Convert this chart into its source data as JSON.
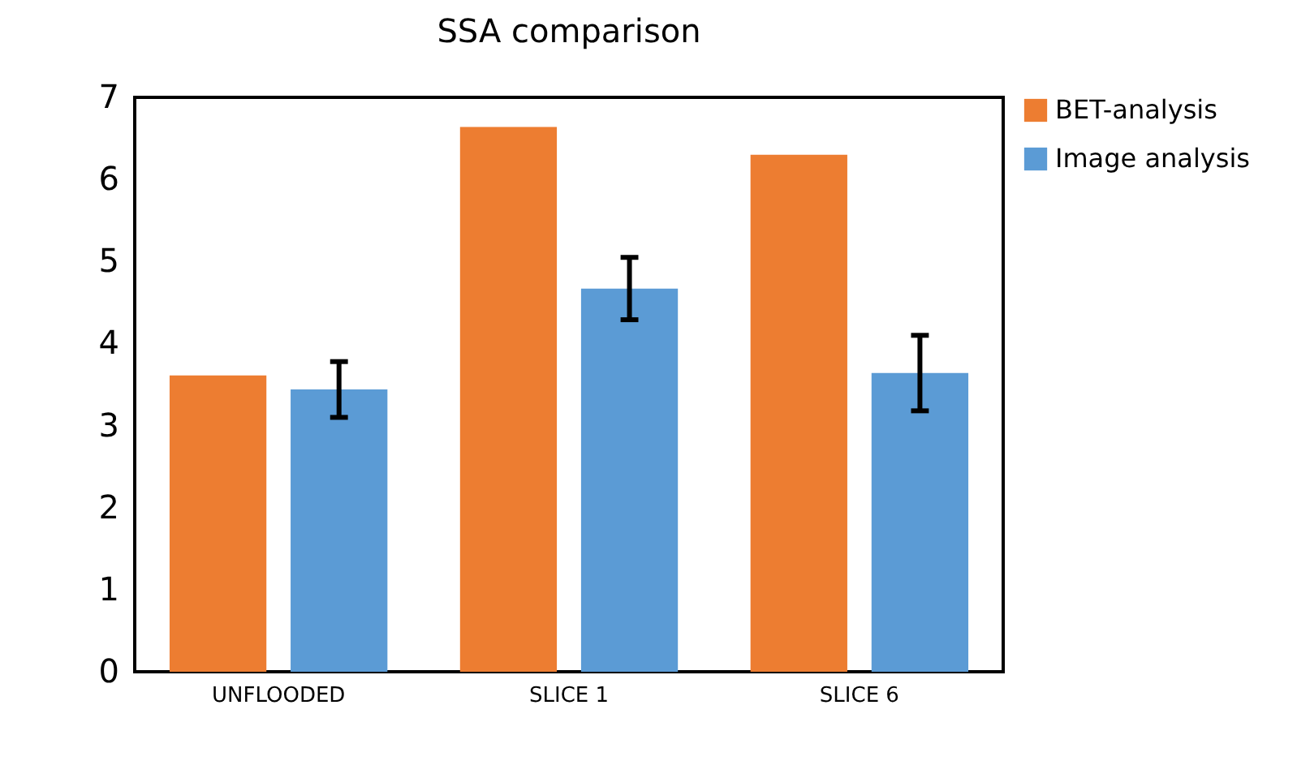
{
  "chart_data": {
    "type": "bar",
    "title": "SSA comparison",
    "categories": [
      "UNFLOODED",
      "SLICE 1",
      "SLICE 6"
    ],
    "series": [
      {
        "name": "BET-analysis",
        "color": "#ed7d31",
        "values": [
          3.61,
          6.64,
          6.3
        ]
      },
      {
        "name": "Image analysis",
        "color": "#5b9bd5",
        "values": [
          3.44,
          4.67,
          3.64
        ],
        "errors": [
          0.34,
          0.38,
          0.46
        ]
      }
    ],
    "ylim": [
      0,
      7
    ],
    "yticks": [
      0,
      1,
      2,
      3,
      4,
      5,
      6,
      7
    ],
    "grid": false,
    "legend": "right"
  }
}
